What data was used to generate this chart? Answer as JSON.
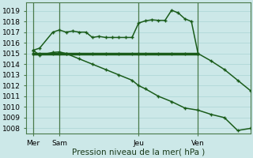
{
  "background_color": "#cce8e8",
  "grid_color": "#aad4d4",
  "line_color": "#1a5c1a",
  "xlabel": "Pression niveau de la mer( hPa )",
  "ylim": [
    1007.5,
    1019.8
  ],
  "yticks": [
    1008,
    1009,
    1010,
    1011,
    1012,
    1013,
    1014,
    1015,
    1016,
    1017,
    1018,
    1019
  ],
  "xlim": [
    0,
    17
  ],
  "x_ticks_labels": [
    "Mer",
    "Sam",
    "Jeu",
    "Ven"
  ],
  "x_ticks_pos": [
    0.5,
    2.5,
    8.5,
    13.0
  ],
  "vlines_x": [
    0.5,
    2.5,
    8.5,
    13.0
  ],
  "line_flat_x": [
    0.5,
    1,
    2,
    2.5,
    3,
    4,
    5,
    6,
    7,
    8,
    8.5,
    9,
    10,
    11,
    12,
    13.0
  ],
  "line_flat_y": [
    1015,
    1015,
    1015,
    1015,
    1015,
    1015,
    1015,
    1015,
    1015,
    1015,
    1015,
    1015,
    1015,
    1015,
    1015,
    1015
  ],
  "line_up_x": [
    0.5,
    1,
    2,
    2.5,
    3,
    3.5,
    4,
    4.5,
    5,
    5.5,
    6,
    6.5,
    7,
    7.5,
    8,
    8.5,
    9,
    9.5,
    10,
    10.5,
    11,
    11.5,
    12,
    12.5,
    13.0,
    14,
    15,
    16,
    17
  ],
  "line_up_y": [
    1015.3,
    1015.5,
    1017.0,
    1017.2,
    1017.0,
    1017.1,
    1017.0,
    1017.0,
    1016.5,
    1016.6,
    1016.5,
    1016.5,
    1016.5,
    1016.5,
    1016.5,
    1017.85,
    1018.05,
    1018.15,
    1018.1,
    1018.1,
    1019.05,
    1018.8,
    1018.25,
    1018.0,
    1015.0,
    1014.3,
    1013.5,
    1012.5,
    1011.5
  ],
  "line_down_x": [
    0.5,
    1,
    2,
    2.5,
    3,
    4,
    5,
    6,
    7,
    8,
    8.5,
    9,
    10,
    11,
    12,
    13.0,
    14,
    15,
    16,
    17
  ],
  "line_down_y": [
    1015.3,
    1014.85,
    1015.1,
    1015.15,
    1015.0,
    1014.5,
    1014.0,
    1013.5,
    1013.0,
    1012.5,
    1012.0,
    1011.7,
    1011.0,
    1010.5,
    1009.9,
    1009.7,
    1009.3,
    1009.0,
    1007.8,
    1008.0
  ],
  "tick_fontsize": 6.5,
  "xlabel_fontsize": 7.5
}
